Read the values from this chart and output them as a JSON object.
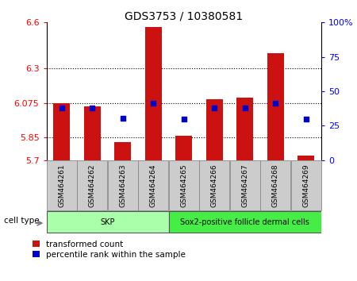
{
  "title": "GDS3753 / 10380581",
  "samples": [
    "GSM464261",
    "GSM464262",
    "GSM464263",
    "GSM464264",
    "GSM464265",
    "GSM464266",
    "GSM464267",
    "GSM464268",
    "GSM464269"
  ],
  "red_values": [
    6.075,
    6.05,
    5.82,
    6.57,
    5.86,
    6.1,
    6.11,
    6.4,
    5.73
  ],
  "blue_values": [
    6.04,
    6.04,
    5.975,
    6.075,
    5.97,
    6.04,
    6.04,
    6.075,
    5.97
  ],
  "bar_base": 5.7,
  "ylim_left": [
    5.7,
    6.6
  ],
  "ylim_right": [
    0,
    100
  ],
  "yticks_left": [
    5.7,
    5.85,
    6.075,
    6.3,
    6.6
  ],
  "ytick_labels_left": [
    "5.7",
    "5.85",
    "6.075",
    "6.3",
    "6.6"
  ],
  "yticks_right": [
    0,
    25,
    50,
    75,
    100
  ],
  "ytick_labels_right": [
    "0",
    "25",
    "50",
    "75",
    "100%"
  ],
  "hlines": [
    5.85,
    6.075,
    6.3
  ],
  "cell_groups": [
    {
      "label": "SKP",
      "start": 0,
      "end": 4,
      "color": "#aaffaa"
    },
    {
      "label": "Sox2-positive follicle dermal cells",
      "start": 4,
      "end": 9,
      "color": "#44ee44"
    }
  ],
  "cell_type_label": "cell type",
  "legend_red_label": "transformed count",
  "legend_blue_label": "percentile rank within the sample",
  "bar_color": "#CC1111",
  "blue_color": "#0000CC",
  "bar_width": 0.55,
  "title_fontsize": 10,
  "tick_fontsize": 8,
  "sample_fontsize": 6.5
}
